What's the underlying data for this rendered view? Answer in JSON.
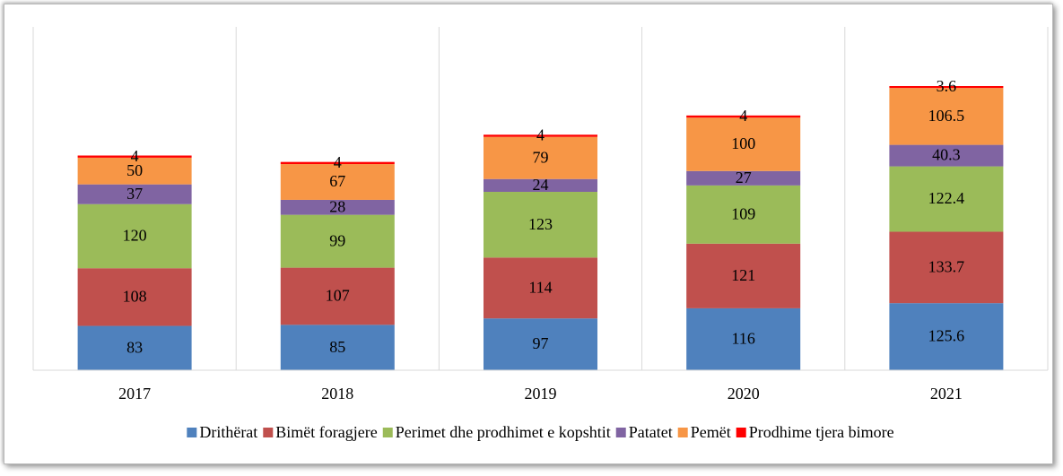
{
  "chart_data": {
    "type": "stacked-bar",
    "categories": [
      "2017",
      "2018",
      "2019",
      "2020",
      "2021"
    ],
    "series": [
      {
        "name": "Drithërat",
        "color": "#4f81bd",
        "values": [
          83,
          85,
          97,
          116,
          125.6
        ]
      },
      {
        "name": "Bimët foragjere",
        "color": "#c0504d",
        "values": [
          108,
          107,
          114,
          121,
          133.7
        ]
      },
      {
        "name": "Perimet dhe prodhimet e kopshtit",
        "color": "#9bbb59",
        "values": [
          120,
          99,
          123,
          109,
          122.4
        ]
      },
      {
        "name": "Patatet",
        "color": "#8064a2",
        "values": [
          37,
          28,
          24,
          27,
          40.3
        ]
      },
      {
        "name": "Pemët",
        "color": "#f79646",
        "values": [
          50,
          67,
          79,
          100,
          106.5
        ]
      },
      {
        "name": "Prodhime tjera bimore",
        "color": "#ff0000",
        "values": [
          4,
          4,
          4,
          4,
          3.6
        ]
      }
    ],
    "legend": "bottom",
    "grid": true
  }
}
